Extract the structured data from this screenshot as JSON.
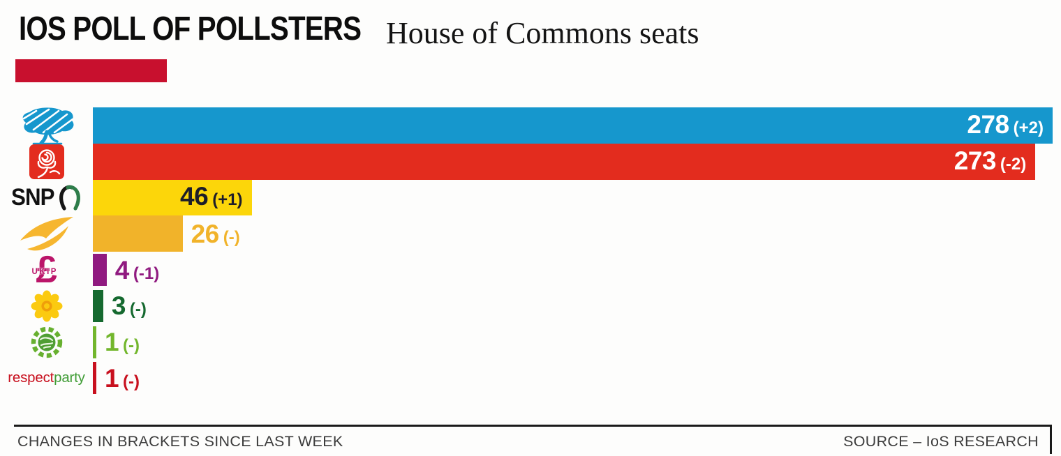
{
  "header": {
    "title": "IOS POLL OF POLLSTERS",
    "subtitle": "House of Commons seats",
    "accent_color": "#c8102e"
  },
  "icons": {
    "snp_text": "SNP",
    "ukip_text": "UKIP",
    "pound_symbol": "£",
    "respect_red": "respect",
    "respect_green": "party"
  },
  "chart_data": {
    "type": "bar",
    "orientation": "horizontal",
    "title": "IOS POLL OF POLLSTERS",
    "subtitle": "House of Commons seats",
    "unit": "seats",
    "axis_max": 278,
    "grid": false,
    "legend": false,
    "categories": [
      "Conservative",
      "Labour",
      "SNP",
      "Liberal Democrats",
      "UKIP",
      "Plaid Cymru",
      "Green",
      "Respect"
    ],
    "values": [
      278,
      273,
      46,
      26,
      4,
      3,
      1,
      1
    ],
    "changes": [
      "+2",
      "-2",
      "+1",
      "-",
      "-1",
      "-",
      "-",
      "-"
    ],
    "rows": [
      {
        "party": "Conservative",
        "icon": "conservative-tree-icon",
        "seats": 278,
        "value_label": "278",
        "change": "(+2)",
        "bar_color": "#1697cd",
        "label_color": "#ffffff",
        "label_inside": true
      },
      {
        "party": "Labour",
        "icon": "labour-rose-icon",
        "seats": 273,
        "value_label": "273",
        "change": "(-2)",
        "bar_color": "#e32c1e",
        "label_color": "#ffffff",
        "label_inside": true
      },
      {
        "party": "SNP",
        "icon": "snp-logo-icon",
        "seats": 46,
        "value_label": "46",
        "change": "(+1)",
        "bar_color": "#fcd60a",
        "label_color": "#1d1d29",
        "label_inside": true
      },
      {
        "party": "Liberal Democrats",
        "icon": "libdem-bird-icon",
        "seats": 26,
        "value_label": "26",
        "change": "(-)",
        "bar_color": "#f1b32a",
        "label_color": "#f1b32a",
        "label_inside": false
      },
      {
        "party": "UKIP",
        "icon": "ukip-pound-icon",
        "seats": 4,
        "value_label": "4",
        "change": "(-1)",
        "bar_color": "#901a80",
        "label_color": "#901a80",
        "label_inside": false
      },
      {
        "party": "Plaid Cymru",
        "icon": "plaid-daffodil-icon",
        "seats": 3,
        "value_label": "3",
        "change": "(-)",
        "bar_color": "#15692f",
        "label_color": "#15692f",
        "label_inside": false
      },
      {
        "party": "Green",
        "icon": "green-party-icon",
        "seats": 1,
        "value_label": "1",
        "change": "(-)",
        "bar_color": "#72b62c",
        "label_color": "#72b62c",
        "label_inside": false
      },
      {
        "party": "Respect",
        "icon": "respect-party-wordmark",
        "seats": 1,
        "value_label": "1",
        "change": "(-)",
        "bar_color": "#c8101e",
        "label_color": "#c8101e",
        "label_inside": false
      }
    ]
  },
  "footer": {
    "note": "CHANGES IN BRACKETS SINCE LAST WEEK",
    "source": "SOURCE – IoS RESEARCH"
  }
}
